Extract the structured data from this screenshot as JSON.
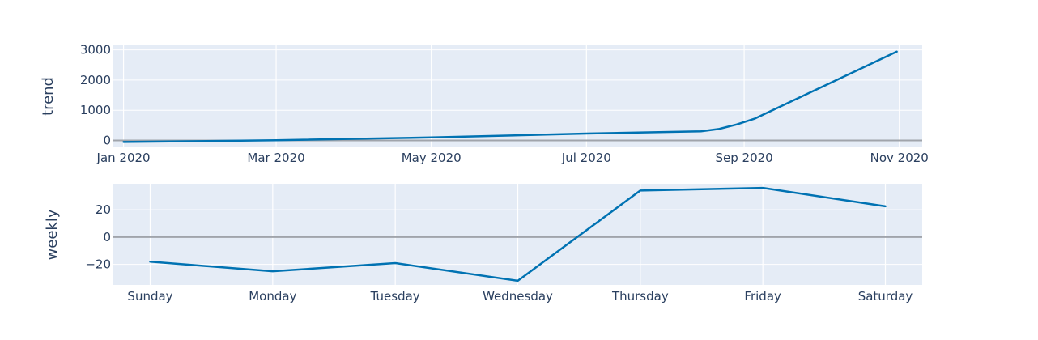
{
  "chart_data": [
    {
      "type": "line",
      "ylabel": "trend",
      "x": [
        "2020-01-01",
        "2020-03-01",
        "2020-05-01",
        "2020-07-01",
        "2020-08-15",
        "2020-08-22",
        "2020-08-29",
        "2020-09-05",
        "2020-10-31"
      ],
      "values": [
        -50,
        10,
        100,
        230,
        300,
        380,
        530,
        720,
        2940
      ],
      "xlim": [
        "2019-12-28",
        "2020-11-10"
      ],
      "ylim": [
        -200,
        3150
      ],
      "x_ticks": [
        {
          "date": "2020-01-01",
          "label": "Jan 2020"
        },
        {
          "date": "2020-03-01",
          "label": "Mar 2020"
        },
        {
          "date": "2020-05-01",
          "label": "May 2020"
        },
        {
          "date": "2020-07-01",
          "label": "Jul 2020"
        },
        {
          "date": "2020-09-01",
          "label": "Sep 2020"
        },
        {
          "date": "2020-11-01",
          "label": "Nov 2020"
        }
      ],
      "y_ticks": [
        {
          "value": 0,
          "label": "0"
        },
        {
          "value": 1000,
          "label": "1000"
        },
        {
          "value": 2000,
          "label": "2000"
        },
        {
          "value": 3000,
          "label": "3000"
        }
      ],
      "grid": true,
      "color": "#0072b2"
    },
    {
      "type": "line",
      "ylabel": "weekly",
      "categories": [
        "Sunday",
        "Monday",
        "Tuesday",
        "Wednesday",
        "Thursday",
        "Friday",
        "Saturday"
      ],
      "values": [
        -18,
        -25,
        -19,
        -32,
        34,
        36,
        22.5
      ],
      "ylim": [
        -35,
        39
      ],
      "y_ticks": [
        {
          "value": -20,
          "label": "−20"
        },
        {
          "value": 0,
          "label": "0"
        },
        {
          "value": 20,
          "label": "20"
        }
      ],
      "grid": true,
      "color": "#0072b2"
    }
  ]
}
